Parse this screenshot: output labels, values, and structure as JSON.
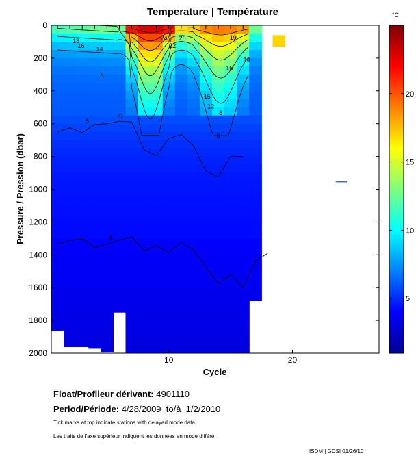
{
  "chart_data": {
    "type": "heatmap",
    "title": "Temperature | Température",
    "xlabel": "Cycle",
    "ylabel": "Pressure / Pression (dbar)",
    "xlim": [
      0.5,
      27
    ],
    "ylim": [
      2000,
      0
    ],
    "x_ticks": [
      10,
      20
    ],
    "y_ticks": [
      0,
      200,
      400,
      600,
      800,
      1000,
      1200,
      1400,
      1600,
      1800,
      2000
    ],
    "colorbar": {
      "unit": "°C",
      "range": [
        1,
        25
      ],
      "ticks": [
        5,
        10,
        15,
        20
      ],
      "colormap": [
        "#00008f",
        "#0000ff",
        "#00ffff",
        "#ffff00",
        "#ff0000",
        "#800000"
      ]
    },
    "profile_max_depth_dbar": [
      1860,
      1960,
      1960,
      1970,
      1990,
      1750,
      2000,
      2000,
      2000,
      2000,
      2000,
      2000,
      2000,
      2000,
      2000,
      2000,
      1680
    ],
    "labeled_isotherms": [
      {
        "label": "18",
        "cycle": 2.5,
        "pressure": 95
      },
      {
        "label": "16",
        "cycle": 2.9,
        "pressure": 125
      },
      {
        "label": "14",
        "cycle": 4.4,
        "pressure": 145
      },
      {
        "label": "8",
        "cycle": 4.6,
        "pressure": 305
      },
      {
        "label": "5",
        "cycle": 3.4,
        "pressure": 585
      },
      {
        "label": "5",
        "cycle": 6.1,
        "pressure": 555
      },
      {
        "label": "4",
        "cycle": 5.3,
        "pressure": 1295
      },
      {
        "label": "24",
        "cycle": 9.6,
        "pressure": 80
      },
      {
        "label": "22",
        "cycle": 10.3,
        "pressure": 125
      },
      {
        "label": "20",
        "cycle": 11.1,
        "pressure": 80
      },
      {
        "label": "19",
        "cycle": 15.2,
        "pressure": 75
      },
      {
        "label": "16",
        "cycle": 14.9,
        "pressure": 260
      },
      {
        "label": "14",
        "cycle": 16.3,
        "pressure": 210
      },
      {
        "label": "15",
        "cycle": 13.1,
        "pressure": 435
      },
      {
        "label": "12",
        "cycle": 13.4,
        "pressure": 495
      },
      {
        "label": "8",
        "cycle": 14.2,
        "pressure": 535
      },
      {
        "label": "6",
        "cycle": 14.0,
        "pressure": 675
      }
    ],
    "isotherm_4C_pressure": [
      1330,
      1315,
      1300,
      1355,
      1335,
      1310,
      1290,
      1375,
      1345,
      1385,
      1325,
      1370,
      1475,
      1575,
      1520,
      1600,
      1440,
      1390
    ],
    "isotherm_5C_pressure": [
      650,
      625,
      655,
      605,
      600,
      585,
      590,
      760,
      795,
      690,
      665,
      735,
      890,
      925,
      800,
      800
    ],
    "extra_cells": [
      {
        "cycle": 18.9,
        "pressure": 95,
        "temperature": 17
      }
    ],
    "extra_segments": [
      {
        "cycle_start": 23.5,
        "cycle_end": 24.4,
        "pressure": 955
      }
    ],
    "delayed_mode_cycles": [
      1,
      2,
      3,
      4,
      5,
      6,
      7,
      8,
      9,
      10,
      11,
      12,
      13,
      14,
      15,
      16
    ]
  },
  "info": {
    "float_label": "Float/Profileur dérivant:",
    "float_value": "4901110",
    "period_label": "Period/Période:",
    "period_value": "4/28/2009  to/à  1/2/2010",
    "note_en": "Tick marks at top indicate stations with delayed mode data",
    "note_fr": "Les traits de l'axe supérieur indiquent les données en mode différé",
    "credit": "ISDM | GDSI  01/26/10"
  }
}
